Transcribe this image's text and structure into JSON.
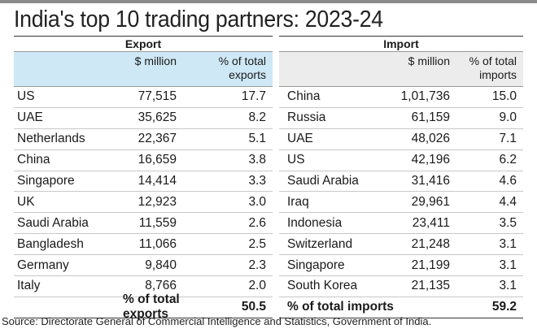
{
  "title": "India's top 10 trading partners: 2023-24",
  "export": {
    "heading": "Export",
    "col_value": "$ million",
    "col_share": "% of total exports",
    "rows": [
      {
        "country": "US",
        "value": "77,515",
        "share": "17.7"
      },
      {
        "country": "UAE",
        "value": "35,625",
        "share": "8.2"
      },
      {
        "country": "Netherlands",
        "value": "22,367",
        "share": "5.1"
      },
      {
        "country": "China",
        "value": "16,659",
        "share": "3.8"
      },
      {
        "country": "Singapore",
        "value": "14,414",
        "share": "3.3"
      },
      {
        "country": "UK",
        "value": "12,923",
        "share": "3.0"
      },
      {
        "country": "Saudi Arabia",
        "value": "11,559",
        "share": "2.6"
      },
      {
        "country": "Bangladesh",
        "value": "11,066",
        "share": "2.5"
      },
      {
        "country": "Germany",
        "value": "9,840",
        "share": "2.3"
      },
      {
        "country": "Italy",
        "value": "8,766",
        "share": "2.0"
      }
    ],
    "total_label": "% of total exports",
    "total_value": "50.5"
  },
  "import": {
    "heading": "Import",
    "col_value": "$ million",
    "col_share": "% of total imports",
    "rows": [
      {
        "country": "China",
        "value": "1,01,736",
        "share": "15.0"
      },
      {
        "country": "Russia",
        "value": "61,159",
        "share": "9.0"
      },
      {
        "country": "UAE",
        "value": "48,026",
        "share": "7.1"
      },
      {
        "country": "US",
        "value": "42,196",
        "share": "6.2"
      },
      {
        "country": "Saudi Arabia",
        "value": "31,416",
        "share": "4.6"
      },
      {
        "country": "Iraq",
        "value": "29,961",
        "share": "4.4"
      },
      {
        "country": "Indonesia",
        "value": "23,411",
        "share": "3.5"
      },
      {
        "country": "Switzerland",
        "value": "21,248",
        "share": "3.1"
      },
      {
        "country": "Singapore",
        "value": "21,199",
        "share": "3.1"
      },
      {
        "country": "South Korea",
        "value": "21,135",
        "share": "3.1"
      }
    ],
    "total_label": "% of total imports",
    "total_value": "59.2"
  },
  "source": "Source: Directorate General of Commercial Intelligence and Statistics, Government of India."
}
